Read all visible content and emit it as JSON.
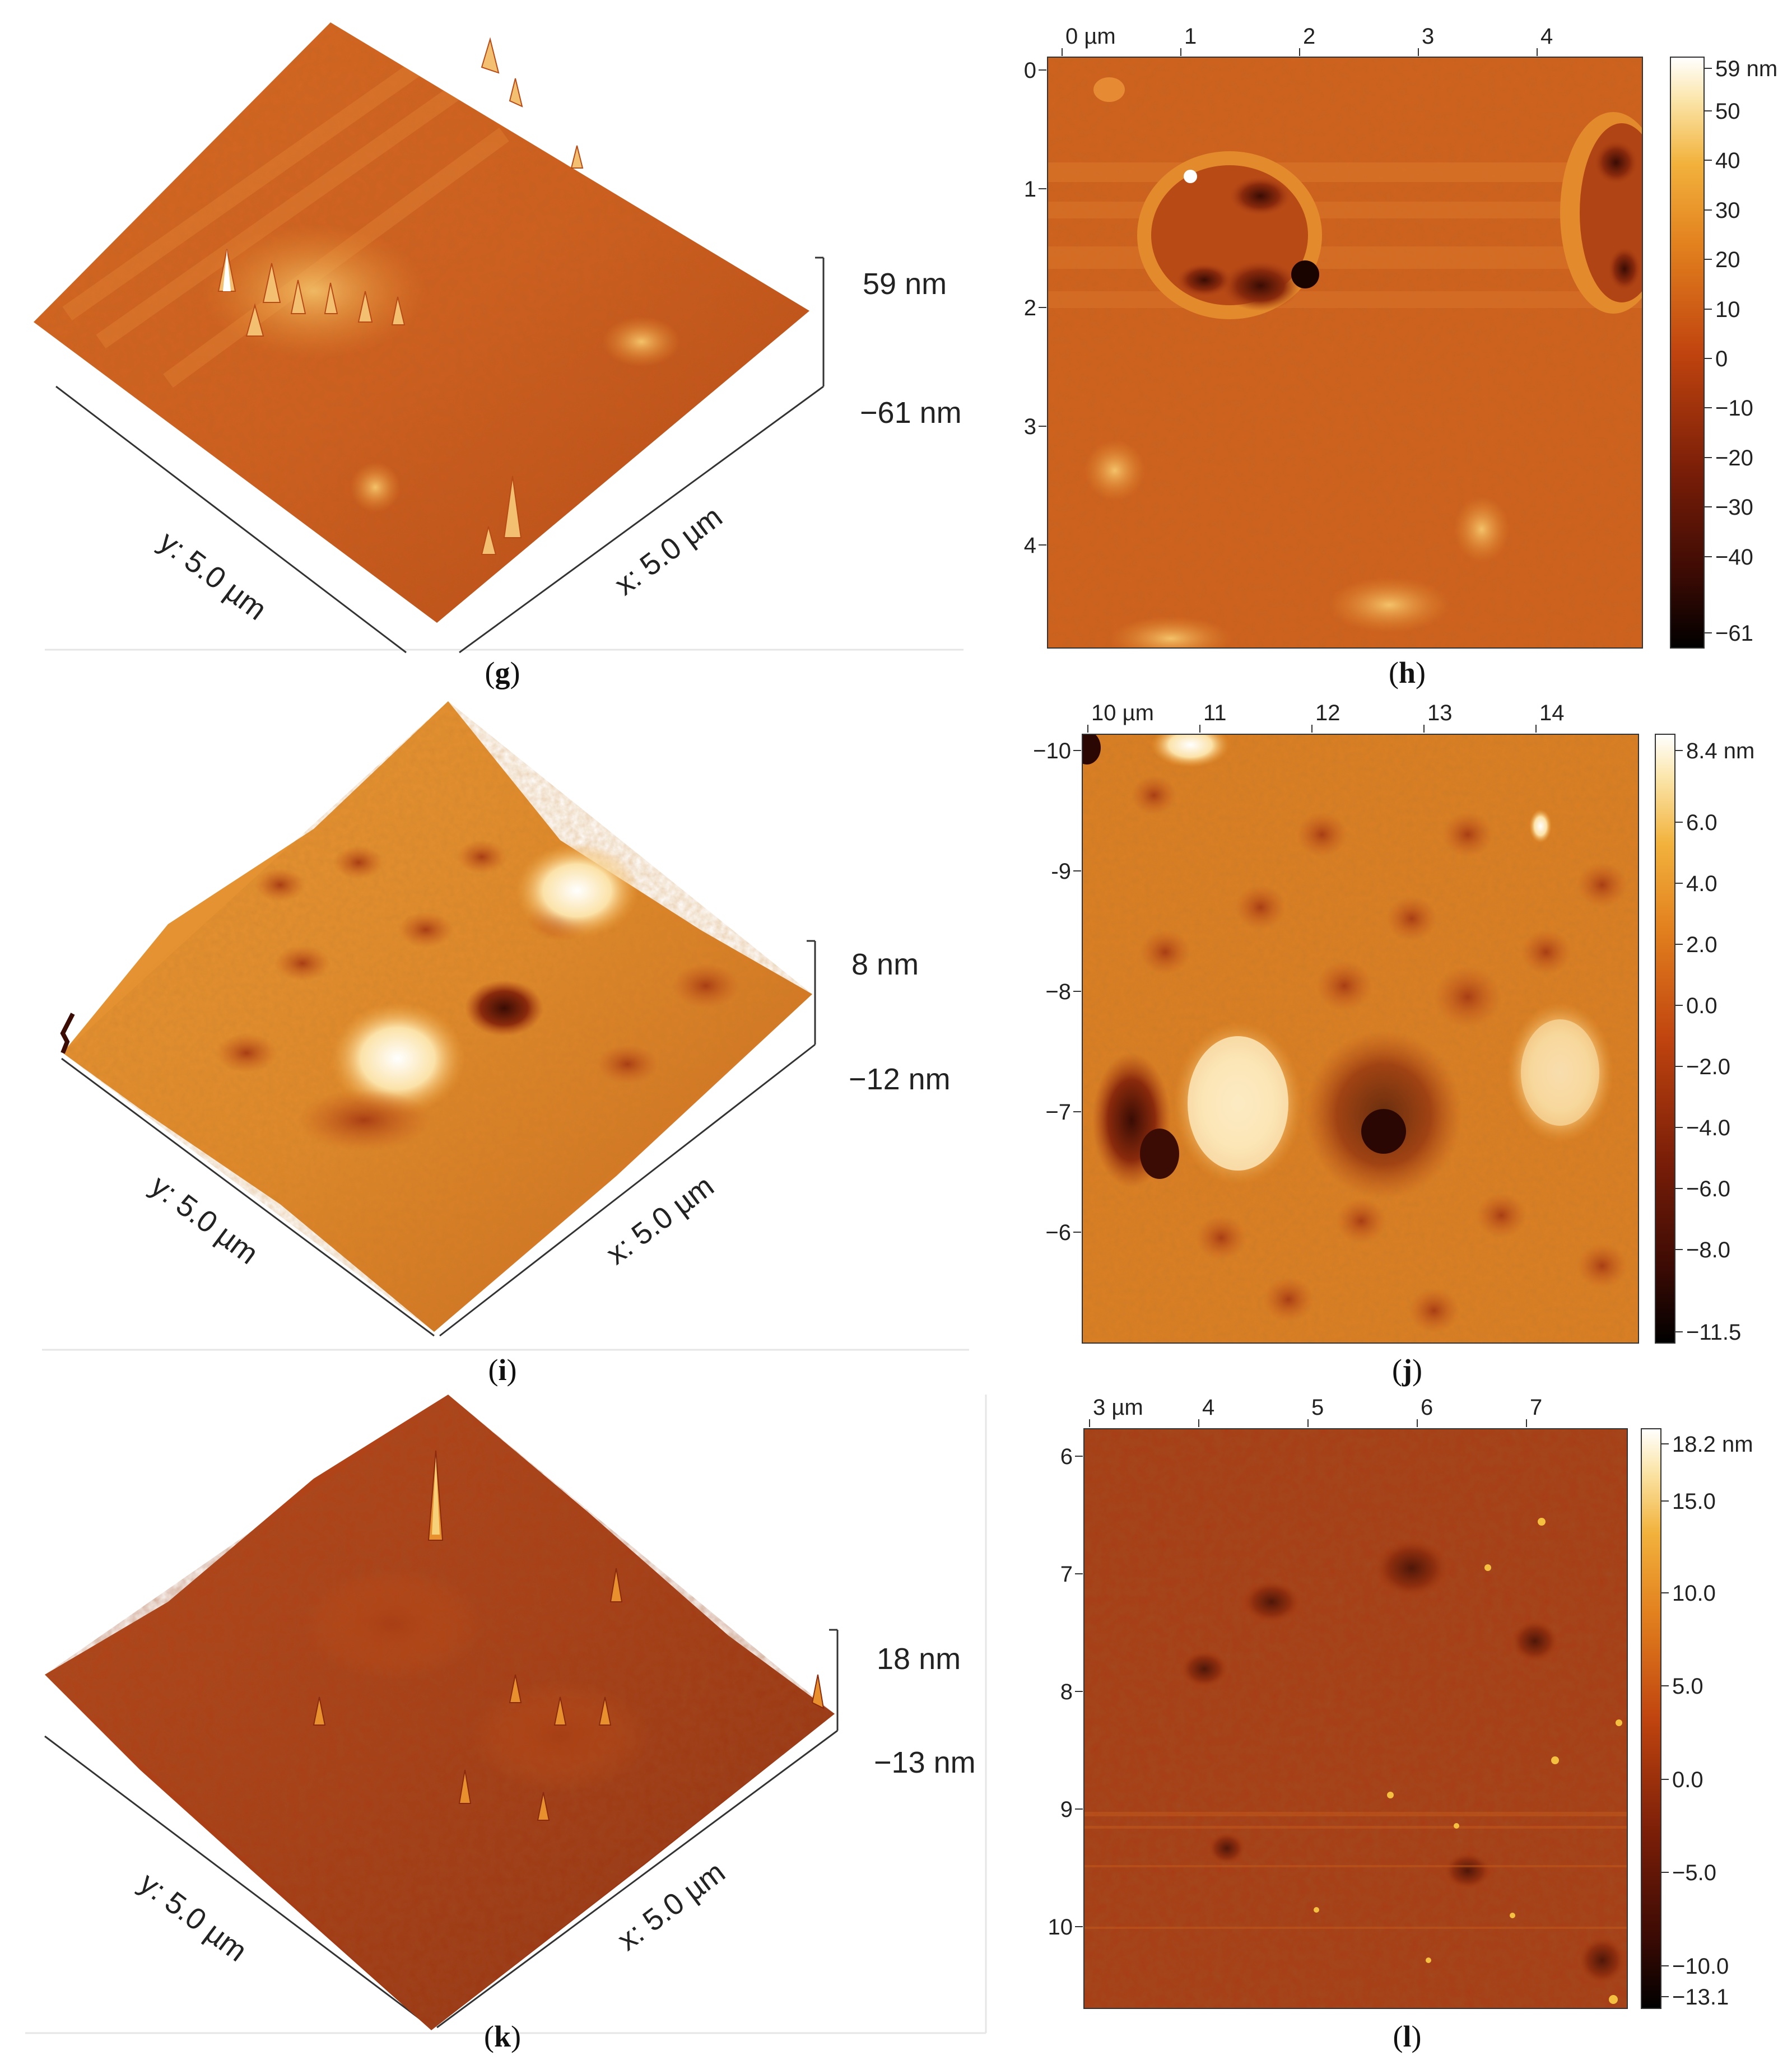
{
  "panels": [
    {
      "id": "g",
      "letter": "g",
      "type": "3d",
      "zmax": "59 nm",
      "zmin": "−61 nm",
      "ylabel": "y: 5.0 µm",
      "xlabel": "x: 5.0 µm"
    },
    {
      "id": "h",
      "letter": "h",
      "type": "2d",
      "top_ticks": [
        "0 µm",
        "1",
        "2",
        "3",
        "4"
      ],
      "left_ticks": [
        "0",
        "1",
        "2",
        "3",
        "4"
      ],
      "cb_ticks": [
        "59 nm",
        "50",
        "40",
        "30",
        "20",
        "10",
        "0",
        "−10",
        "−20",
        "−30",
        "−40",
        "−61"
      ]
    },
    {
      "id": "i",
      "letter": "i",
      "type": "3d",
      "zmax": "8 nm",
      "zmin": "−12 nm",
      "ylabel": "y: 5.0 µm",
      "xlabel": "x: 5.0 µm"
    },
    {
      "id": "j",
      "letter": "j",
      "type": "2d",
      "top_ticks": [
        "10 µm",
        "11",
        "12",
        "13",
        "14"
      ],
      "left_ticks": [
        "−10",
        "-9",
        "−8",
        "−7",
        "−6"
      ],
      "cb_ticks": [
        "8.4 nm",
        "6.0",
        "4.0",
        "2.0",
        "0.0",
        "−2.0",
        "−4.0",
        "−6.0",
        "−8.0",
        "−11.5"
      ]
    },
    {
      "id": "k",
      "letter": "k",
      "type": "3d",
      "zmax": "18 nm",
      "zmin": "−13 nm",
      "ylabel": "y: 5.0 µm",
      "xlabel": "x: 5.0 µm"
    },
    {
      "id": "l",
      "letter": "l",
      "type": "2d",
      "top_ticks": [
        "3 µm",
        "4",
        "5",
        "6",
        "7"
      ],
      "left_ticks": [
        "6",
        "7",
        "8",
        "9",
        "10"
      ],
      "cb_ticks": [
        "18.2 nm",
        "15.0",
        "10.0",
        "5.0",
        "0.0",
        "−5.0",
        "−10.0",
        "−13.1"
      ]
    }
  ],
  "colors": {
    "dark": "#1a0400",
    "brown": "#7a1e08",
    "red": "#b0360f",
    "orange": "#d8661e",
    "amber": "#eea032",
    "light": "#fbe8b0",
    "white": "#ffffff"
  }
}
